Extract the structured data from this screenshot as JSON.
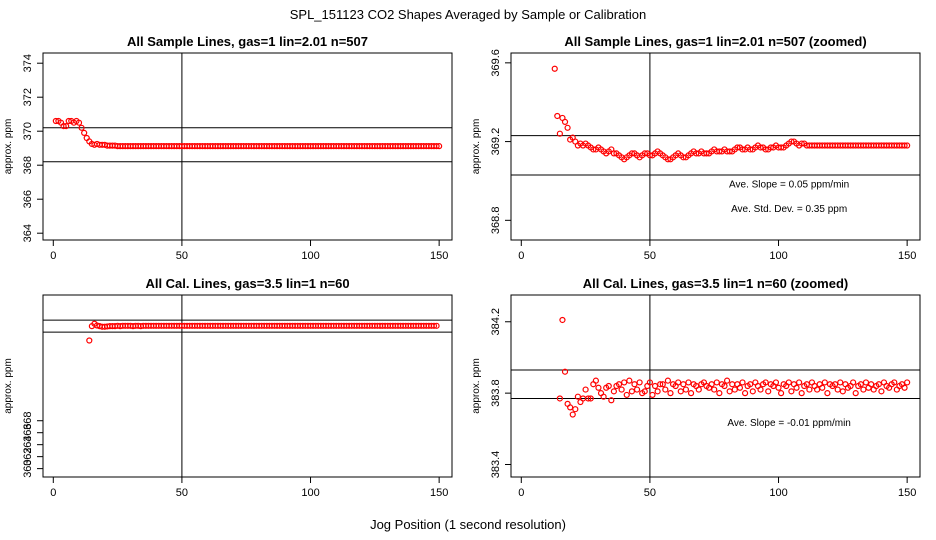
{
  "title": "SPL_151123  CO2 Shapes Averaged by Sample or Calibration",
  "xlabel": "Jog Position (1 second resolution)",
  "colors": {
    "points": "#ff0000",
    "lines": "#000000",
    "background": "#ffffff"
  },
  "chart_data": [
    {
      "type": "scatter",
      "title": "All Sample Lines, gas=1 lin=2.01 n=507",
      "ylabel": "approx. ppm",
      "xlim": [
        -4,
        155
      ],
      "ylim": [
        363.6,
        374.6
      ],
      "xticks": [
        "0",
        "50",
        "100",
        "150"
      ],
      "yticks": [
        "364",
        "366",
        "368",
        "370",
        "372",
        "374"
      ],
      "hlines": [
        370.2,
        368.2
      ],
      "vline": 50,
      "annotations": [],
      "series": [
        {
          "x_start": 1,
          "x_step": 1,
          "y": [
            370.6,
            370.6,
            370.5,
            370.3,
            370.3,
            370.6,
            370.6,
            370.5,
            370.6,
            370.5,
            370.2,
            369.9,
            369.6,
            369.4,
            369.25,
            369.2,
            369.25,
            369.2,
            369.2,
            369.2,
            369.15,
            369.15,
            369.15,
            369.15,
            369.12,
            369.12,
            369.12,
            369.12,
            369.12,
            369.12,
            369.12,
            369.12,
            369.12,
            369.12,
            369.12,
            369.12,
            369.12,
            369.12,
            369.12,
            369.12,
            369.12,
            369.12,
            369.12,
            369.12,
            369.12,
            369.12,
            369.12,
            369.12,
            369.12,
            369.12,
            369.12,
            369.12,
            369.12,
            369.12,
            369.12,
            369.12,
            369.12,
            369.12,
            369.12,
            369.12,
            369.12,
            369.12,
            369.12,
            369.12,
            369.12,
            369.12,
            369.12,
            369.12,
            369.12,
            369.12,
            369.12,
            369.12,
            369.12,
            369.12,
            369.12,
            369.12,
            369.12,
            369.12,
            369.12,
            369.12,
            369.12,
            369.12,
            369.12,
            369.12,
            369.12,
            369.12,
            369.12,
            369.12,
            369.12,
            369.12,
            369.12,
            369.12,
            369.12,
            369.12,
            369.12,
            369.12,
            369.12,
            369.12,
            369.12,
            369.12,
            369.12,
            369.12,
            369.12,
            369.12,
            369.12,
            369.12,
            369.12,
            369.12,
            369.12,
            369.12,
            369.12,
            369.12,
            369.12,
            369.12,
            369.12,
            369.12,
            369.12,
            369.12,
            369.12,
            369.12,
            369.12,
            369.12,
            369.12,
            369.12,
            369.12,
            369.12,
            369.12,
            369.12,
            369.12,
            369.12,
            369.12,
            369.12,
            369.12,
            369.12,
            369.12,
            369.12,
            369.12,
            369.12,
            369.12,
            369.12,
            369.12,
            369.12,
            369.12,
            369.12,
            369.12,
            369.12,
            369.12,
            369.12,
            369.12,
            369.12
          ]
        }
      ]
    },
    {
      "type": "scatter",
      "title": "All Sample Lines, gas=1 lin=2.01 n=507 (zoomed)",
      "ylabel": "approx. ppm",
      "xlim": [
        -4,
        155
      ],
      "ylim": [
        368.7,
        369.65
      ],
      "xticks": [
        "0",
        "50",
        "100",
        "150"
      ],
      "yticks": [
        "368.8",
        "369.2",
        "369.6"
      ],
      "hlines": [
        369.23,
        369.03
      ],
      "vline": 50,
      "annotations": [
        "Ave. Slope =  0.05  ppm/min",
        "Ave. Std. Dev. =  0.35  ppm"
      ],
      "series": [
        {
          "x_start": 13,
          "x_step": 1,
          "y": [
            369.57,
            369.33,
            369.24,
            369.32,
            369.3,
            369.27,
            369.21,
            369.22,
            369.2,
            369.18,
            369.19,
            369.18,
            369.19,
            369.18,
            369.17,
            369.16,
            369.16,
            369.17,
            369.16,
            369.15,
            369.14,
            369.15,
            369.16,
            369.14,
            369.14,
            369.13,
            369.12,
            369.11,
            369.12,
            369.13,
            369.14,
            369.14,
            369.13,
            369.12,
            369.13,
            369.14,
            369.14,
            369.13,
            369.13,
            369.14,
            369.15,
            369.14,
            369.13,
            369.12,
            369.11,
            369.11,
            369.12,
            369.13,
            369.14,
            369.13,
            369.12,
            369.12,
            369.13,
            369.14,
            369.15,
            369.14,
            369.14,
            369.15,
            369.14,
            369.14,
            369.14,
            369.15,
            369.16,
            369.15,
            369.15,
            369.15,
            369.16,
            369.15,
            369.15,
            369.15,
            369.16,
            369.17,
            369.17,
            369.16,
            369.16,
            369.17,
            369.16,
            369.16,
            369.17,
            369.18,
            369.17,
            369.17,
            369.16,
            369.16,
            369.17,
            369.17,
            369.18,
            369.17,
            369.17,
            369.17,
            369.18,
            369.19,
            369.2,
            369.2,
            369.19,
            369.18,
            369.19,
            369.19,
            369.18,
            369.18,
            369.18,
            369.18,
            369.18,
            369.18,
            369.18,
            369.18,
            369.18,
            369.18,
            369.18,
            369.18,
            369.18,
            369.18,
            369.18,
            369.18,
            369.18,
            369.18,
            369.18,
            369.18,
            369.18,
            369.18,
            369.18,
            369.18,
            369.18,
            369.18,
            369.18,
            369.18,
            369.18,
            369.18,
            369.18,
            369.18,
            369.18,
            369.18,
            369.18,
            369.18,
            369.18,
            369.18,
            369.18,
            369.18
          ]
        }
      ]
    },
    {
      "type": "scatter",
      "title": "All Cal. Lines, gas=3.5 lin=1 n=60",
      "ylabel": "approx. ppm",
      "xlim": [
        -4,
        155
      ],
      "ylim": [
        358.6,
        389.0
      ],
      "xticks": [
        "0",
        "50",
        "100",
        "150"
      ],
      "yticks": [
        "360",
        "362",
        "364",
        "366",
        "368"
      ],
      "hlines": [
        384.8,
        382.8
      ],
      "vline": 50,
      "annotations": [],
      "series": [
        {
          "x_start": 14,
          "x_step": 1,
          "y": [
            381.4,
            383.8,
            384.2,
            383.9,
            383.8,
            383.7,
            383.7,
            383.75,
            383.8,
            383.8,
            383.8,
            383.85,
            383.8,
            383.85,
            383.85,
            383.85,
            383.85,
            383.8,
            383.85,
            383.85,
            383.8,
            383.85,
            383.85,
            383.85,
            383.85,
            383.85,
            383.85,
            383.85,
            383.85,
            383.85,
            383.85,
            383.85,
            383.85,
            383.85,
            383.85,
            383.85,
            383.85,
            383.85,
            383.85,
            383.85,
            383.85,
            383.85,
            383.85,
            383.85,
            383.85,
            383.85,
            383.85,
            383.85,
            383.85,
            383.85,
            383.85,
            383.85,
            383.85,
            383.85,
            383.85,
            383.85,
            383.85,
            383.85,
            383.85,
            383.85,
            383.85,
            383.85,
            383.85,
            383.85,
            383.85,
            383.85,
            383.85,
            383.85,
            383.85,
            383.85,
            383.85,
            383.85,
            383.85,
            383.85,
            383.85,
            383.85,
            383.85,
            383.85,
            383.85,
            383.85,
            383.85,
            383.85,
            383.85,
            383.85,
            383.85,
            383.85,
            383.85,
            383.85,
            383.85,
            383.85,
            383.85,
            383.85,
            383.85,
            383.85,
            383.85,
            383.85,
            383.85,
            383.85,
            383.85,
            383.85,
            383.85,
            383.85,
            383.85,
            383.85,
            383.85,
            383.85,
            383.85,
            383.85,
            383.85,
            383.85,
            383.85,
            383.85,
            383.85,
            383.85,
            383.85,
            383.85,
            383.85,
            383.85,
            383.85,
            383.85,
            383.85,
            383.85,
            383.85,
            383.85,
            383.85,
            383.85,
            383.85,
            383.85,
            383.85,
            383.85,
            383.85,
            383.85,
            383.85,
            383.85,
            383.85,
            383.85
          ]
        }
      ]
    },
    {
      "type": "scatter",
      "title": "All Cal. Lines, gas=3.5 lin=1 n=60 (zoomed)",
      "ylabel": "approx. ppm",
      "xlim": [
        -4,
        155
      ],
      "ylim": [
        383.33,
        384.35
      ],
      "xticks": [
        "0",
        "50",
        "100",
        "150"
      ],
      "yticks": [
        "383.4",
        "383.8",
        "384.2"
      ],
      "hlines": [
        383.93,
        383.77
      ],
      "vline": 50,
      "annotations": [
        "Ave. Slope =  -0.01  ppm/min"
      ],
      "series": [
        {
          "x_start": 15,
          "x_step": 1,
          "y": [
            383.77,
            384.21,
            383.92,
            383.74,
            383.72,
            383.68,
            383.71,
            383.78,
            383.75,
            383.77,
            383.82,
            383.77,
            383.77,
            383.85,
            383.87,
            383.83,
            383.8,
            383.78,
            383.83,
            383.84,
            383.76,
            383.81,
            383.84,
            383.85,
            383.82,
            383.86,
            383.79,
            383.87,
            383.81,
            383.85,
            383.82,
            383.86,
            383.8,
            383.81,
            383.84,
            383.86,
            383.79,
            383.84,
            383.81,
            383.85,
            383.85,
            383.82,
            383.87,
            383.8,
            383.85,
            383.84,
            383.86,
            383.81,
            383.85,
            383.82,
            383.86,
            383.8,
            383.85,
            383.84,
            383.82,
            383.85,
            383.86,
            383.84,
            383.83,
            383.85,
            383.82,
            383.86,
            383.8,
            383.85,
            383.84,
            383.87,
            383.81,
            383.85,
            383.82,
            383.85,
            383.83,
            383.86,
            383.8,
            383.84,
            383.85,
            383.81,
            383.86,
            383.84,
            383.82,
            383.85,
            383.86,
            383.81,
            383.85,
            383.84,
            383.86,
            383.83,
            383.8,
            383.85,
            383.84,
            383.86,
            383.81,
            383.85,
            383.83,
            383.86,
            383.8,
            383.84,
            383.85,
            383.82,
            383.86,
            383.84,
            383.82,
            383.85,
            383.83,
            383.86,
            383.8,
            383.85,
            383.84,
            383.85,
            383.82,
            383.86,
            383.81,
            383.85,
            383.83,
            383.84,
            383.86,
            383.8,
            383.84,
            383.85,
            383.82,
            383.86,
            383.83,
            383.85,
            383.82,
            383.84,
            383.85,
            383.81,
            383.86,
            383.84,
            383.83,
            383.85,
            383.86,
            383.82,
            383.84,
            383.85,
            383.83,
            383.86
          ]
        }
      ]
    }
  ]
}
